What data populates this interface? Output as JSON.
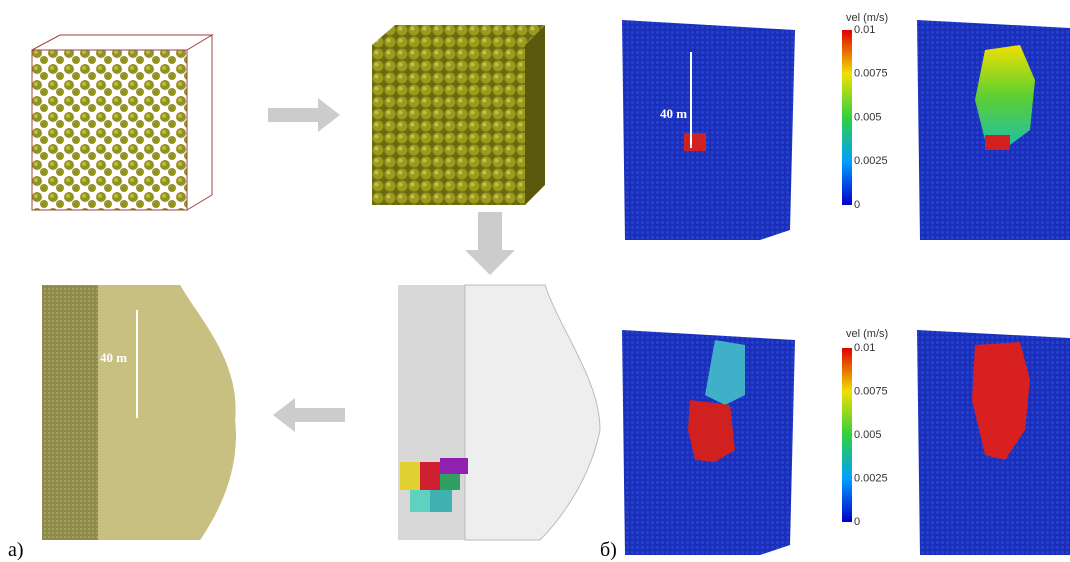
{
  "panel_a": {
    "label": "a)",
    "scale_label": "40 m"
  },
  "panel_b": {
    "label": "б)",
    "scale_label": "40 m",
    "colorbars": [
      {
        "title": "vel (m/s)",
        "ticks": [
          "0.01",
          "0.0075",
          "0.005",
          "0.0025",
          "0"
        ]
      },
      {
        "title": "vel (m/s)",
        "ticks": [
          "0.01",
          "0.0075",
          "0.005",
          "0.0025",
          "0"
        ]
      }
    ]
  }
}
